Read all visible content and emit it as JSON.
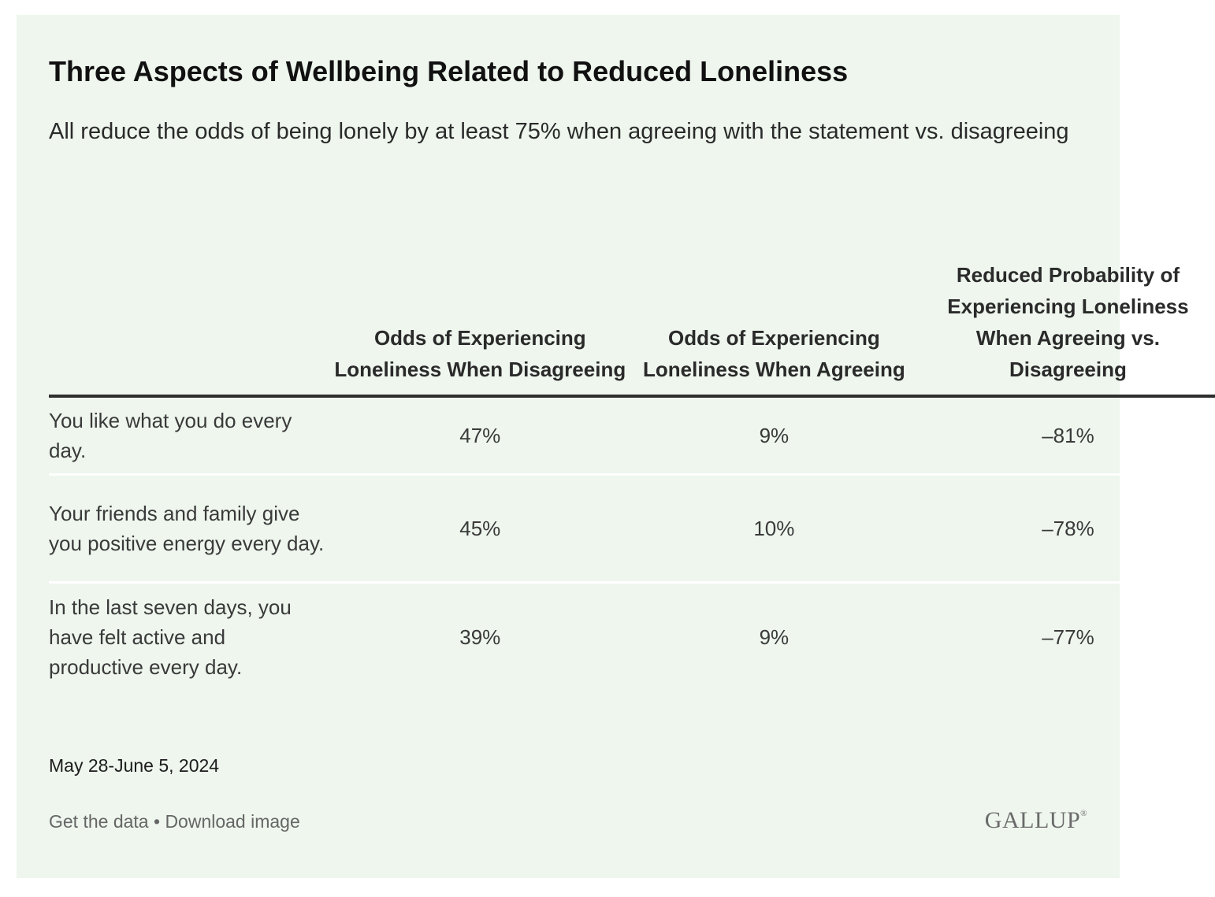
{
  "chart_data": {
    "type": "table",
    "title": "Three Aspects of Wellbeing Related to Reduced Loneliness",
    "subtitle": "All reduce the odds of being lonely by at least 75% when agreeing with the statement vs. disagreeing",
    "columns": [
      "",
      "Odds of Experiencing Loneliness When Disagreeing",
      "Odds of Experiencing Loneliness When Agreeing",
      "Reduced Probability of Experiencing Loneliness When Agreeing vs. Disagreeing"
    ],
    "rows": [
      {
        "label": "You like what you do every day.",
        "disagreeing": "47%",
        "agreeing": "9%",
        "reduced": "–81%"
      },
      {
        "label": "Your friends and family give you positive energy every day.",
        "disagreeing": "45%",
        "agreeing": "10%",
        "reduced": "–78%"
      },
      {
        "label": "In the last seven days, you have felt active and productive every day.",
        "disagreeing": "39%",
        "agreeing": "9%",
        "reduced": "–77%"
      }
    ],
    "values": {
      "disagreeing": [
        47,
        45,
        39
      ],
      "agreeing": [
        9,
        10,
        9
      ],
      "reduced": [
        -81,
        -78,
        -77
      ]
    },
    "note": "May 28-June 5, 2024"
  },
  "footer": {
    "get_data": "Get the data",
    "separator": "•",
    "download": "Download image",
    "logo": "GALLUP",
    "logo_mark": "®"
  },
  "colors": {
    "background": "#eef6ee",
    "rule": "#2e2e2e",
    "row_divider": "#ffffff"
  }
}
